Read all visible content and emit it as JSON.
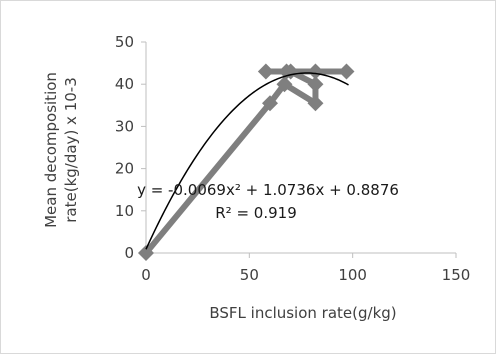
{
  "chart_data": {
    "type": "scatter",
    "xlabel": "BSFL inclusion rate(g/kg)",
    "ylabel_lines": [
      "Mean decomposition",
      "rate(kg/day) x 10-3"
    ],
    "xlim": [
      0,
      150
    ],
    "ylim": [
      0,
      50
    ],
    "x_ticks": [
      0,
      50,
      100,
      150
    ],
    "y_ticks": [
      0,
      10,
      20,
      30,
      40,
      50
    ],
    "x_tick_labels": [
      "0",
      "50",
      "100",
      "150"
    ],
    "y_tick_labels": [
      "0",
      "10",
      "20",
      "30",
      "40",
      "50"
    ],
    "grid": false,
    "legend": "none",
    "series": [
      {
        "points": [
          [
            0,
            0
          ],
          [
            60,
            35.5
          ],
          [
            67,
            40
          ],
          [
            82,
            35.5
          ],
          [
            82,
            40
          ],
          [
            70,
            43
          ],
          [
            58,
            43
          ],
          [
            68,
            43
          ],
          [
            82,
            43
          ],
          [
            97,
            43
          ]
        ],
        "color": "#7f7f7f",
        "marker": "diamond",
        "connected": true
      }
    ],
    "trendline": {
      "type": "polynomial",
      "coefficients": [
        -0.0069,
        1.0736,
        0.8876
      ],
      "color": "#000000",
      "x_range": [
        0,
        98
      ]
    },
    "annotations": [
      "y = -0.0069x² + 1.0736x + 0.8876",
      "R² = 0.919"
    ]
  }
}
